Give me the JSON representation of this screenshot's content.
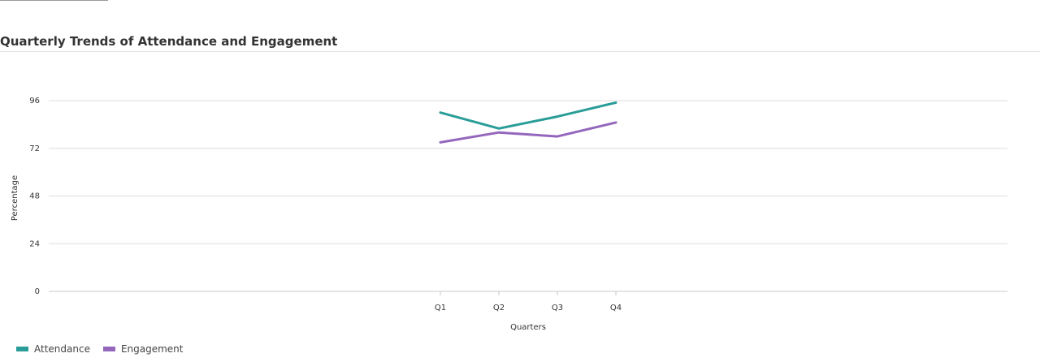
{
  "chart_data": {
    "type": "line",
    "title": "Quarterly Trends of Attendance and Engagement",
    "xlabel": "Quarters",
    "ylabel": "Percentage",
    "categories": [
      "Q1",
      "Q2",
      "Q3",
      "Q4"
    ],
    "y_ticks": [
      0,
      24,
      48,
      72,
      96
    ],
    "ylim": [
      0,
      96
    ],
    "grid": true,
    "legend_position": "bottom-left",
    "series": [
      {
        "name": "Attendance",
        "color": "#2a9d99",
        "values": [
          90,
          82,
          88,
          95
        ]
      },
      {
        "name": "Engagement",
        "color": "#9467bd",
        "values": [
          75,
          80,
          78,
          85
        ]
      }
    ]
  }
}
